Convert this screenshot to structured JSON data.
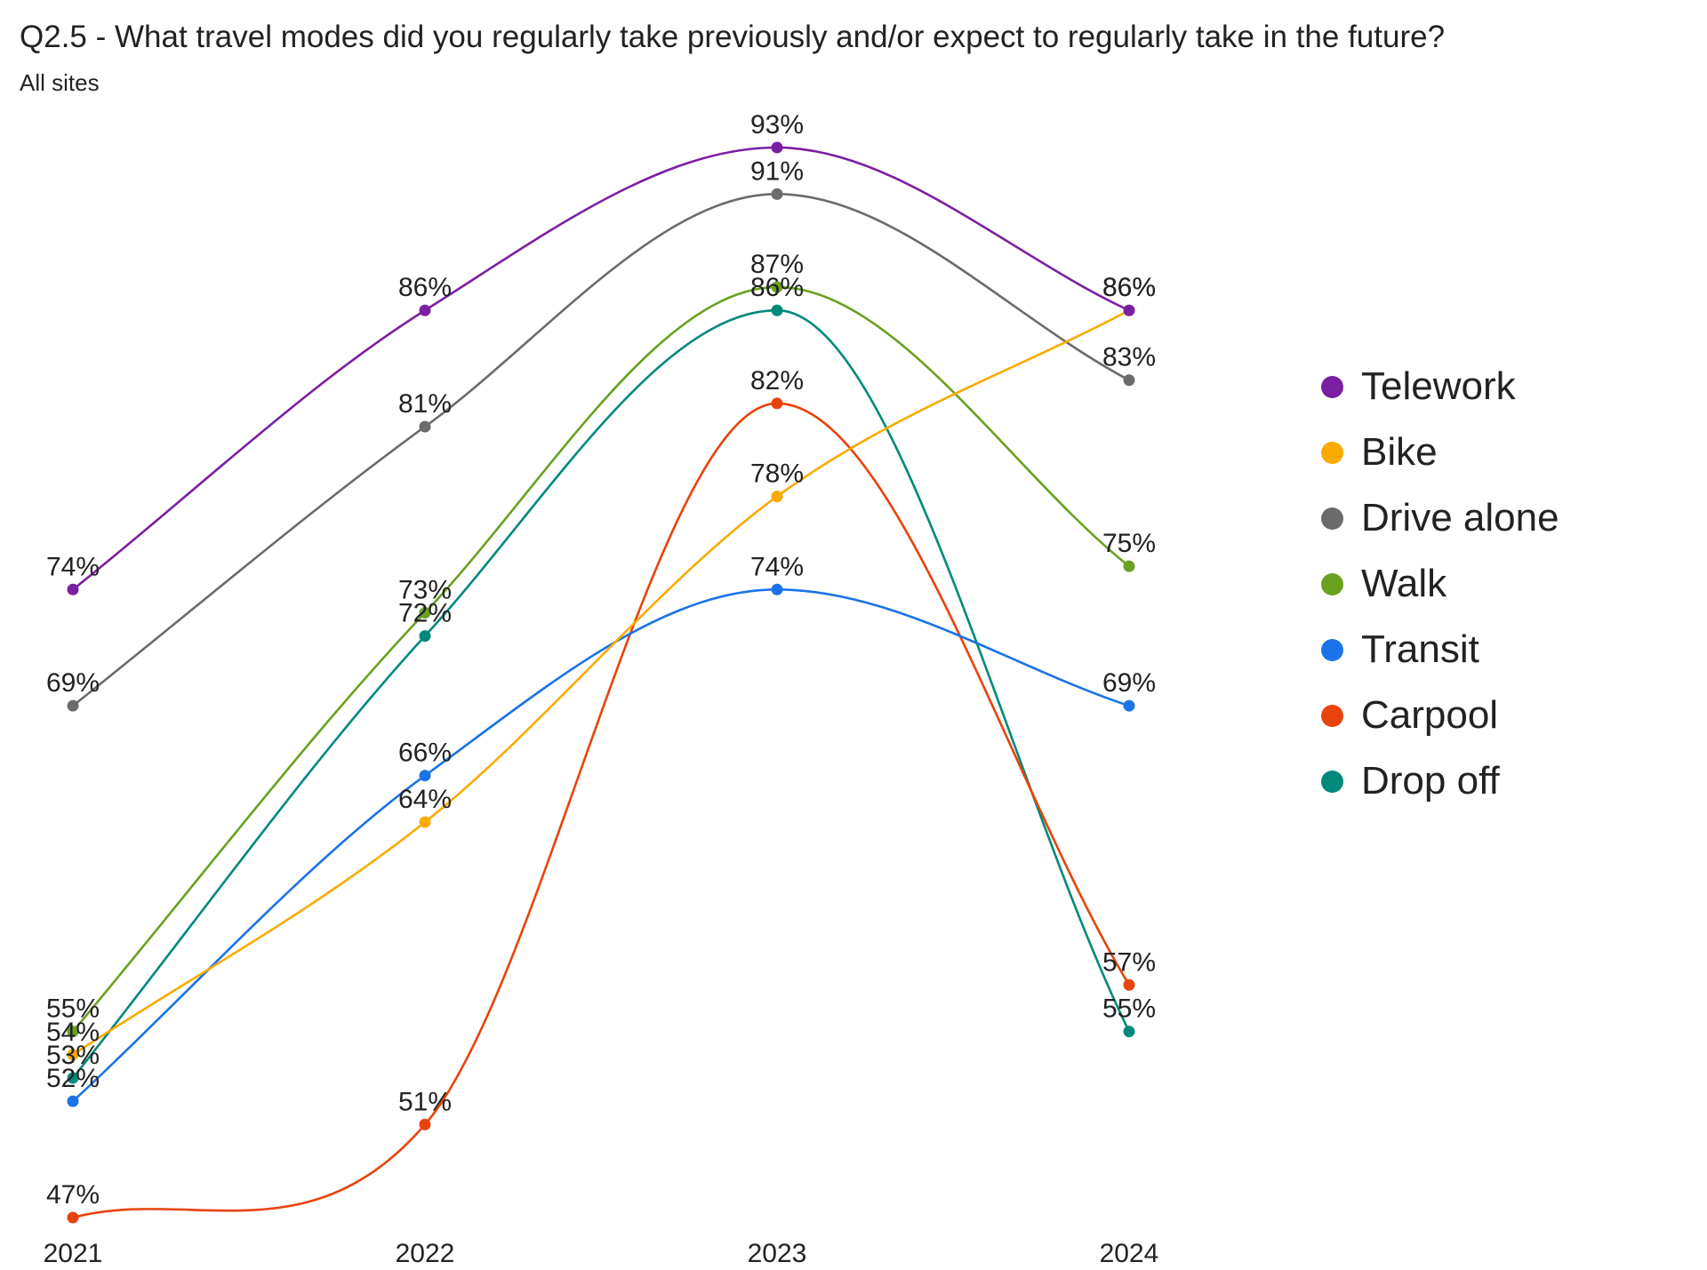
{
  "chart_data": {
    "type": "line",
    "title": "Q2.5 - What travel modes did you regularly take previously and/or expect to regularly take in the future?",
    "subtitle": "All sites",
    "categories": [
      "2021",
      "2022",
      "2023",
      "2024"
    ],
    "xlabel": "",
    "ylabel": "",
    "ylim": [
      47,
      93
    ],
    "grid": false,
    "legend_position": "right",
    "series": [
      {
        "name": "Telework",
        "color": "#7b1fa2",
        "values": [
          74,
          86,
          93,
          86
        ],
        "labels": [
          "74%",
          "86%",
          "93%",
          "86%"
        ]
      },
      {
        "name": "Bike",
        "color": "#f9ab00",
        "values": [
          54,
          64,
          78,
          86
        ],
        "labels": [
          "54%",
          "64%",
          "78%",
          "86%"
        ]
      },
      {
        "name": "Drive alone",
        "color": "#6b6b6b",
        "values": [
          69,
          81,
          91,
          83
        ],
        "labels": [
          "69%",
          "81%",
          "91%",
          "83%"
        ]
      },
      {
        "name": "Walk",
        "color": "#6aa121",
        "values": [
          55,
          73,
          87,
          75
        ],
        "labels": [
          "55%",
          "73%",
          "87%",
          "75%"
        ]
      },
      {
        "name": "Transit",
        "color": "#1a73e8",
        "values": [
          52,
          66,
          74,
          69
        ],
        "labels": [
          "52%",
          "66%",
          "74%",
          "69%"
        ]
      },
      {
        "name": "Carpool",
        "color": "#e8430c",
        "values": [
          47,
          51,
          82,
          57
        ],
        "labels": [
          "47%",
          "51%",
          "82%",
          "57%"
        ]
      },
      {
        "name": "Drop off",
        "color": "#00897b",
        "values": [
          53,
          72,
          86,
          55
        ],
        "labels": [
          "53%",
          "72%",
          "86%",
          "55%"
        ]
      }
    ]
  }
}
